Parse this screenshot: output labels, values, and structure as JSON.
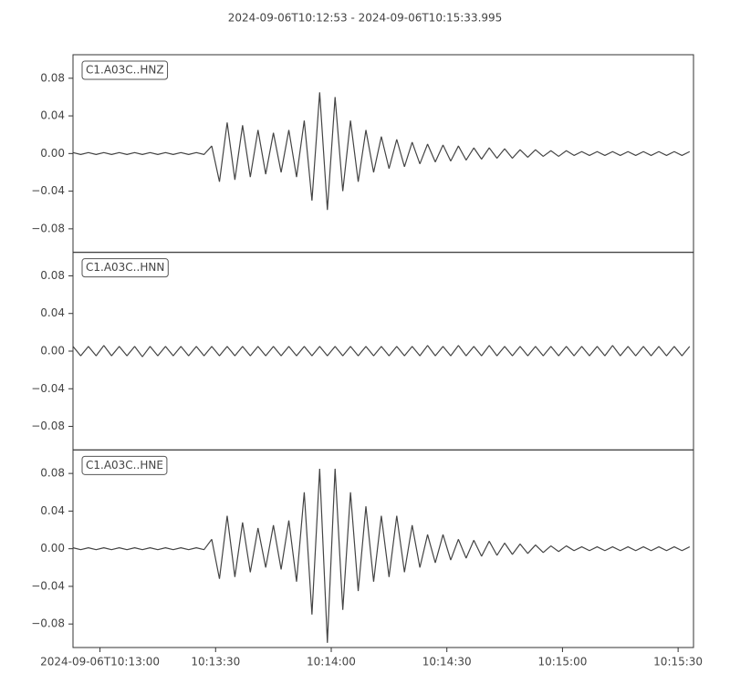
{
  "title": "2024-09-06T10:12:53  -  2024-09-06T10:15:33.995",
  "chart_data": {
    "type": "line",
    "color": "#444444",
    "xlim": [
      "2024-09-06T10:12:53",
      "2024-09-06T10:15:33.995"
    ],
    "xticks": [
      {
        "value": "2024-09-06T10:13:00",
        "label": "2024-09-06T10:13:00"
      },
      {
        "value": "2024-09-06T10:13:30",
        "label": "10:13:30"
      },
      {
        "value": "2024-09-06T10:14:00",
        "label": "10:14:00"
      },
      {
        "value": "2024-09-06T10:14:30",
        "label": "10:14:30"
      },
      {
        "value": "2024-09-06T10:15:00",
        "label": "10:15:00"
      },
      {
        "value": "2024-09-06T10:15:30",
        "label": "10:15:30"
      }
    ],
    "ylim": [
      -0.105,
      0.105
    ],
    "yticks": [
      {
        "value": 0.08,
        "label": "0.08"
      },
      {
        "value": 0.04,
        "label": "0.04"
      },
      {
        "value": 0,
        "label": "0.00"
      },
      {
        "value": -0.04,
        "label": "−0.04"
      },
      {
        "value": -0.08,
        "label": "−0.08"
      }
    ],
    "x": [
      "2024-09-06T10:12:53",
      "2024-09-06T10:12:55",
      "2024-09-06T10:12:57",
      "2024-09-06T10:12:59",
      "2024-09-06T10:13:01",
      "2024-09-06T10:13:03",
      "2024-09-06T10:13:05",
      "2024-09-06T10:13:07",
      "2024-09-06T10:13:09",
      "2024-09-06T10:13:11",
      "2024-09-06T10:13:13",
      "2024-09-06T10:13:15",
      "2024-09-06T10:13:17",
      "2024-09-06T10:13:19",
      "2024-09-06T10:13:21",
      "2024-09-06T10:13:23",
      "2024-09-06T10:13:25",
      "2024-09-06T10:13:27",
      "2024-09-06T10:13:29",
      "2024-09-06T10:13:31",
      "2024-09-06T10:13:33",
      "2024-09-06T10:13:35",
      "2024-09-06T10:13:37",
      "2024-09-06T10:13:39",
      "2024-09-06T10:13:41",
      "2024-09-06T10:13:43",
      "2024-09-06T10:13:45",
      "2024-09-06T10:13:47",
      "2024-09-06T10:13:49",
      "2024-09-06T10:13:51",
      "2024-09-06T10:13:53",
      "2024-09-06T10:13:55",
      "2024-09-06T10:13:57",
      "2024-09-06T10:13:59",
      "2024-09-06T10:14:01",
      "2024-09-06T10:14:03",
      "2024-09-06T10:14:05",
      "2024-09-06T10:14:07",
      "2024-09-06T10:14:09",
      "2024-09-06T10:14:11",
      "2024-09-06T10:14:13",
      "2024-09-06T10:14:15",
      "2024-09-06T10:14:17",
      "2024-09-06T10:14:19",
      "2024-09-06T10:14:21",
      "2024-09-06T10:14:23",
      "2024-09-06T10:14:25",
      "2024-09-06T10:14:27",
      "2024-09-06T10:14:29",
      "2024-09-06T10:14:31",
      "2024-09-06T10:14:33",
      "2024-09-06T10:14:35",
      "2024-09-06T10:14:37",
      "2024-09-06T10:14:39",
      "2024-09-06T10:14:41",
      "2024-09-06T10:14:43",
      "2024-09-06T10:14:45",
      "2024-09-06T10:14:47",
      "2024-09-06T10:14:49",
      "2024-09-06T10:14:51",
      "2024-09-06T10:14:53",
      "2024-09-06T10:14:55",
      "2024-09-06T10:14:57",
      "2024-09-06T10:14:59",
      "2024-09-06T10:15:01",
      "2024-09-06T10:15:03",
      "2024-09-06T10:15:05",
      "2024-09-06T10:15:07",
      "2024-09-06T10:15:09",
      "2024-09-06T10:15:11",
      "2024-09-06T10:15:13",
      "2024-09-06T10:15:15",
      "2024-09-06T10:15:17",
      "2024-09-06T10:15:19",
      "2024-09-06T10:15:21",
      "2024-09-06T10:15:23",
      "2024-09-06T10:15:25",
      "2024-09-06T10:15:27",
      "2024-09-06T10:15:29",
      "2024-09-06T10:15:31",
      "2024-09-06T10:15:33"
    ],
    "series": [
      {
        "name": "C1.A03C..HNZ",
        "values": [
          0.001,
          -0.001,
          0.001,
          -0.001,
          0.001,
          -0.001,
          0.001,
          -0.001,
          0.001,
          -0.001,
          0.001,
          -0.001,
          0.001,
          -0.001,
          0.001,
          -0.001,
          0.001,
          -0.001,
          0.008,
          -0.03,
          0.033,
          -0.028,
          0.03,
          -0.025,
          0.025,
          -0.022,
          0.022,
          -0.02,
          0.025,
          -0.025,
          0.035,
          -0.05,
          0.065,
          -0.06,
          0.06,
          -0.04,
          0.035,
          -0.03,
          0.025,
          -0.02,
          0.018,
          -0.016,
          0.015,
          -0.014,
          0.012,
          -0.011,
          0.01,
          -0.009,
          0.009,
          -0.008,
          0.008,
          -0.007,
          0.006,
          -0.006,
          0.006,
          -0.005,
          0.005,
          -0.005,
          0.004,
          -0.004,
          0.004,
          -0.003,
          0.003,
          -0.003,
          0.003,
          -0.002,
          0.002,
          -0.002,
          0.002,
          -0.002,
          0.002,
          -0.002,
          0.002,
          -0.002,
          0.002,
          -0.002,
          0.002,
          -0.002,
          0.002,
          -0.002,
          0.002
        ]
      },
      {
        "name": "C1.A03C..HNN",
        "values": [
          0.005,
          -0.005,
          0.005,
          -0.005,
          0.006,
          -0.005,
          0.005,
          -0.005,
          0.005,
          -0.006,
          0.005,
          -0.005,
          0.005,
          -0.005,
          0.005,
          -0.005,
          0.005,
          -0.005,
          0.005,
          -0.005,
          0.005,
          -0.005,
          0.005,
          -0.005,
          0.005,
          -0.005,
          0.005,
          -0.005,
          0.005,
          -0.005,
          0.005,
          -0.005,
          0.005,
          -0.005,
          0.005,
          -0.005,
          0.005,
          -0.005,
          0.005,
          -0.005,
          0.005,
          -0.005,
          0.005,
          -0.005,
          0.005,
          -0.005,
          0.006,
          -0.005,
          0.005,
          -0.005,
          0.006,
          -0.005,
          0.005,
          -0.005,
          0.006,
          -0.005,
          0.005,
          -0.005,
          0.005,
          -0.005,
          0.005,
          -0.005,
          0.005,
          -0.005,
          0.005,
          -0.005,
          0.005,
          -0.005,
          0.005,
          -0.005,
          0.006,
          -0.005,
          0.005,
          -0.005,
          0.005,
          -0.005,
          0.005,
          -0.005,
          0.005,
          -0.005,
          0.005
        ]
      },
      {
        "name": "C1.A03C..HNE",
        "values": [
          0.001,
          -0.001,
          0.001,
          -0.001,
          0.001,
          -0.001,
          0.001,
          -0.001,
          0.001,
          -0.001,
          0.001,
          -0.001,
          0.001,
          -0.001,
          0.001,
          -0.001,
          0.001,
          -0.001,
          0.01,
          -0.032,
          0.035,
          -0.03,
          0.028,
          -0.025,
          0.022,
          -0.02,
          0.025,
          -0.022,
          0.03,
          -0.035,
          0.06,
          -0.07,
          0.085,
          -0.1,
          0.085,
          -0.065,
          0.06,
          -0.045,
          0.045,
          -0.035,
          0.035,
          -0.03,
          0.035,
          -0.025,
          0.025,
          -0.02,
          0.015,
          -0.015,
          0.015,
          -0.012,
          0.01,
          -0.01,
          0.009,
          -0.008,
          0.008,
          -0.007,
          0.006,
          -0.006,
          0.005,
          -0.005,
          0.004,
          -0.004,
          0.003,
          -0.003,
          0.003,
          -0.002,
          0.002,
          -0.002,
          0.002,
          -0.002,
          0.002,
          -0.002,
          0.002,
          -0.002,
          0.002,
          -0.002,
          0.002,
          -0.002,
          0.002,
          -0.002,
          0.002
        ]
      }
    ]
  }
}
